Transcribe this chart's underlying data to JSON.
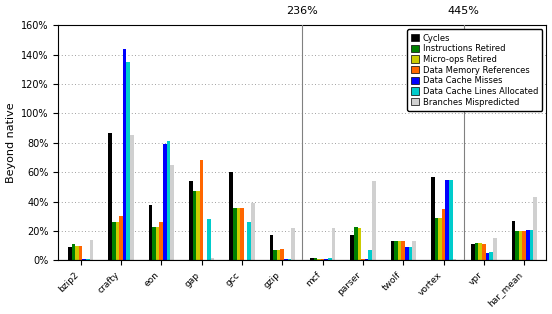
{
  "benchmarks": [
    "bzip2",
    "crafty",
    "eon",
    "gap",
    "gcc",
    "gzip",
    "mcf",
    "parser",
    "twolf",
    "vortex",
    "vpr",
    "har_mean"
  ],
  "series_names": [
    "Cycles",
    "Instructions Retired",
    "Micro-ops Retired",
    "Data Memory References",
    "Data Cache Misses",
    "Data Cache Lines Allocated",
    "Branches Mispredicted"
  ],
  "series_colors": [
    "#000000",
    "#008000",
    "#cccc00",
    "#ff6600",
    "#0000ff",
    "#00cccc",
    "#d0d0d0"
  ],
  "data": {
    "Cycles": [
      9,
      87,
      38,
      54,
      60,
      17,
      2,
      17,
      13,
      57,
      11,
      27
    ],
    "Instructions Retired": [
      11,
      26,
      23,
      47,
      36,
      7,
      2,
      23,
      13,
      29,
      12,
      20
    ],
    "Micro-ops Retired": [
      10,
      26,
      23,
      47,
      36,
      7,
      1,
      22,
      13,
      29,
      12,
      20
    ],
    "Data Memory References": [
      10,
      30,
      26,
      68,
      36,
      8,
      1,
      1,
      13,
      35,
      11,
      20
    ],
    "Data Cache Misses": [
      1,
      144,
      79,
      0,
      0,
      1,
      1,
      1,
      9,
      55,
      5,
      21
    ],
    "Data Cache Lines Allocated": [
      1,
      135,
      81,
      28,
      26,
      1,
      2,
      7,
      9,
      55,
      6,
      21
    ],
    "Branches Mispredicted": [
      14,
      85,
      65,
      2,
      39,
      22,
      22,
      54,
      13,
      1,
      15,
      43
    ]
  },
  "vline_positions": [
    5.5,
    9.5
  ],
  "vline_labels": [
    "236%",
    "445%"
  ],
  "ylim": [
    0,
    160
  ],
  "yticks": [
    0,
    20,
    40,
    60,
    80,
    100,
    120,
    140,
    160
  ],
  "ytick_labels": [
    "0%",
    "20%",
    "40%",
    "60%",
    "80%",
    "100%",
    "120%",
    "140%",
    "160%"
  ],
  "ylabel": "Beyond native",
  "background_color": "#ffffff",
  "bar_width": 0.09,
  "fig_width": 5.52,
  "fig_height": 3.14,
  "dpi": 100
}
